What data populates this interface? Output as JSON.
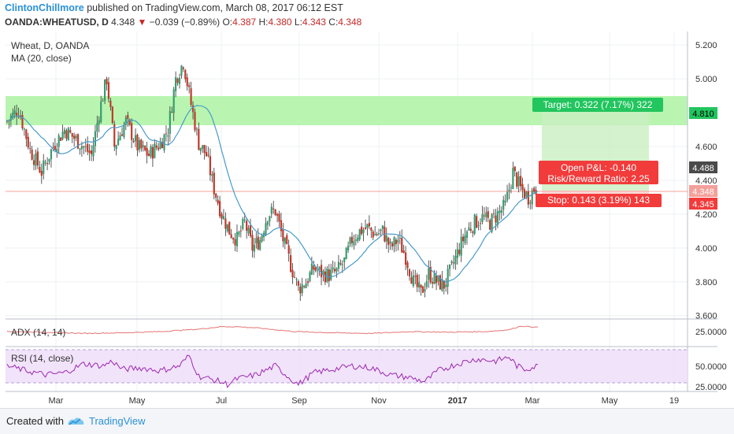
{
  "header": {
    "author": "ClintonChillmore",
    "published_text": "published on TradingView.com, March 08, 2017 06:12 EST",
    "symbol": "OANDA:WHEATUSD, D",
    "last": "4.348",
    "change_arrow": "▼",
    "change": "−0.039 (−0.89%)",
    "o_label": "O:",
    "o": "4.387",
    "h_label": "H:",
    "h": "4.380",
    "l_label": "L:",
    "l": "4.343",
    "c_label": "C:",
    "c": "4.348"
  },
  "footer": {
    "created_with": "Created with",
    "brand": "TradingView",
    "logo_icon": "tradingview-logo-icon"
  },
  "colors": {
    "up": "#3a9b6f",
    "down": "#c0392b",
    "ma": "#4a9bc9",
    "target_zone": "#b9f5b0",
    "target_label": "#22c55e",
    "stop_label": "#f23b3b",
    "rsi_line": "#9c27b0",
    "adx_line": "#e57373",
    "price_line": "#f4a09a"
  },
  "chart_data": [
    {
      "type": "candlestick",
      "title": "Wheat, D, OANDA",
      "indicator": "MA (20, close)",
      "x_ticks": [
        "Mar",
        "May",
        "Jul",
        "Sep",
        "Nov",
        "2017",
        "Mar",
        "May",
        "19"
      ],
      "y_ticks": [
        "5.200",
        "5.000",
        "4.800",
        "4.600",
        "4.400",
        "4.200",
        "4.000",
        "3.800",
        "3.600"
      ],
      "ylim": [
        3.58,
        5.28
      ],
      "price_labels": {
        "target": "4.810",
        "high": "4.488",
        "current": "4.348",
        "stop": "4.345"
      },
      "annotations": {
        "target": "Target: 0.322 (7.17%) 322",
        "open_pl": "Open P&L: -0.140",
        "risk_reward": "Risk/Reward Ratio: 2.25",
        "stop": "Stop: 0.143 (3.19%) 143"
      },
      "path_anchors": [
        [
          0,
          4.75
        ],
        [
          6,
          4.82
        ],
        [
          12,
          4.58
        ],
        [
          18,
          4.45
        ],
        [
          24,
          4.6
        ],
        [
          30,
          4.7
        ],
        [
          38,
          4.62
        ],
        [
          44,
          4.55
        ],
        [
          48,
          4.8
        ],
        [
          52,
          5.0
        ],
        [
          56,
          4.6
        ],
        [
          62,
          4.75
        ],
        [
          68,
          4.6
        ],
        [
          74,
          4.55
        ],
        [
          80,
          4.62
        ],
        [
          84,
          4.7
        ],
        [
          88,
          5.0
        ],
        [
          92,
          5.1
        ],
        [
          96,
          4.85
        ],
        [
          100,
          4.62
        ],
        [
          104,
          4.55
        ],
        [
          108,
          4.35
        ],
        [
          112,
          4.2
        ],
        [
          116,
          4.1
        ],
        [
          120,
          4.05
        ],
        [
          124,
          4.15
        ],
        [
          128,
          4.0
        ],
        [
          132,
          4.05
        ],
        [
          136,
          4.2
        ],
        [
          140,
          4.22
        ],
        [
          144,
          4.05
        ],
        [
          148,
          3.9
        ],
        [
          152,
          3.76
        ],
        [
          156,
          3.8
        ],
        [
          160,
          3.88
        ],
        [
          164,
          3.85
        ],
        [
          168,
          3.84
        ],
        [
          172,
          3.86
        ],
        [
          176,
          3.92
        ],
        [
          180,
          4.05
        ],
        [
          184,
          4.1
        ],
        [
          188,
          4.12
        ],
        [
          192,
          4.08
        ],
        [
          196,
          4.1
        ],
        [
          200,
          4.0
        ],
        [
          204,
          4.05
        ],
        [
          208,
          3.95
        ],
        [
          212,
          3.8
        ],
        [
          216,
          3.73
        ],
        [
          220,
          3.85
        ],
        [
          224,
          3.8
        ],
        [
          228,
          3.78
        ],
        [
          232,
          3.88
        ],
        [
          236,
          4.0
        ],
        [
          240,
          4.1
        ],
        [
          244,
          4.15
        ],
        [
          248,
          4.18
        ],
        [
          252,
          4.15
        ],
        [
          256,
          4.2
        ],
        [
          260,
          4.25
        ],
        [
          264,
          4.45
        ],
        [
          268,
          4.35
        ],
        [
          272,
          4.3
        ],
        [
          275,
          4.35
        ],
        [
          277,
          4.35
        ]
      ]
    },
    {
      "type": "line",
      "indicator": "ADX (14, 14)",
      "y_ticks": [
        "25.0000"
      ],
      "ylim": [
        0,
        40
      ],
      "path_anchors": [
        [
          0,
          22
        ],
        [
          20,
          21
        ],
        [
          40,
          19
        ],
        [
          60,
          20
        ],
        [
          80,
          22
        ],
        [
          100,
          26
        ],
        [
          112,
          30
        ],
        [
          120,
          30
        ],
        [
          130,
          28
        ],
        [
          150,
          22
        ],
        [
          170,
          20
        ],
        [
          190,
          19
        ],
        [
          210,
          22
        ],
        [
          230,
          21
        ],
        [
          250,
          22
        ],
        [
          262,
          25
        ],
        [
          268,
          31
        ],
        [
          277,
          29
        ]
      ]
    },
    {
      "type": "line",
      "indicator": "RSI (14, close)",
      "y_ticks": [
        "50.0000",
        "25.0000"
      ],
      "ylim": [
        20,
        82
      ],
      "guide_levels": [
        70,
        30
      ],
      "path_anchors": [
        [
          0,
          55
        ],
        [
          10,
          48
        ],
        [
          20,
          42
        ],
        [
          30,
          45
        ],
        [
          40,
          58
        ],
        [
          50,
          55
        ],
        [
          55,
          62
        ],
        [
          60,
          50
        ],
        [
          70,
          52
        ],
        [
          80,
          48
        ],
        [
          90,
          55
        ],
        [
          95,
          70
        ],
        [
          100,
          40
        ],
        [
          110,
          33
        ],
        [
          115,
          28
        ],
        [
          120,
          36
        ],
        [
          130,
          42
        ],
        [
          140,
          55
        ],
        [
          148,
          36
        ],
        [
          152,
          28
        ],
        [
          160,
          45
        ],
        [
          170,
          50
        ],
        [
          180,
          55
        ],
        [
          190,
          52
        ],
        [
          200,
          42
        ],
        [
          210,
          38
        ],
        [
          218,
          32
        ],
        [
          225,
          48
        ],
        [
          235,
          58
        ],
        [
          245,
          65
        ],
        [
          255,
          62
        ],
        [
          262,
          68
        ],
        [
          266,
          55
        ],
        [
          270,
          50
        ],
        [
          277,
          55
        ]
      ]
    }
  ]
}
